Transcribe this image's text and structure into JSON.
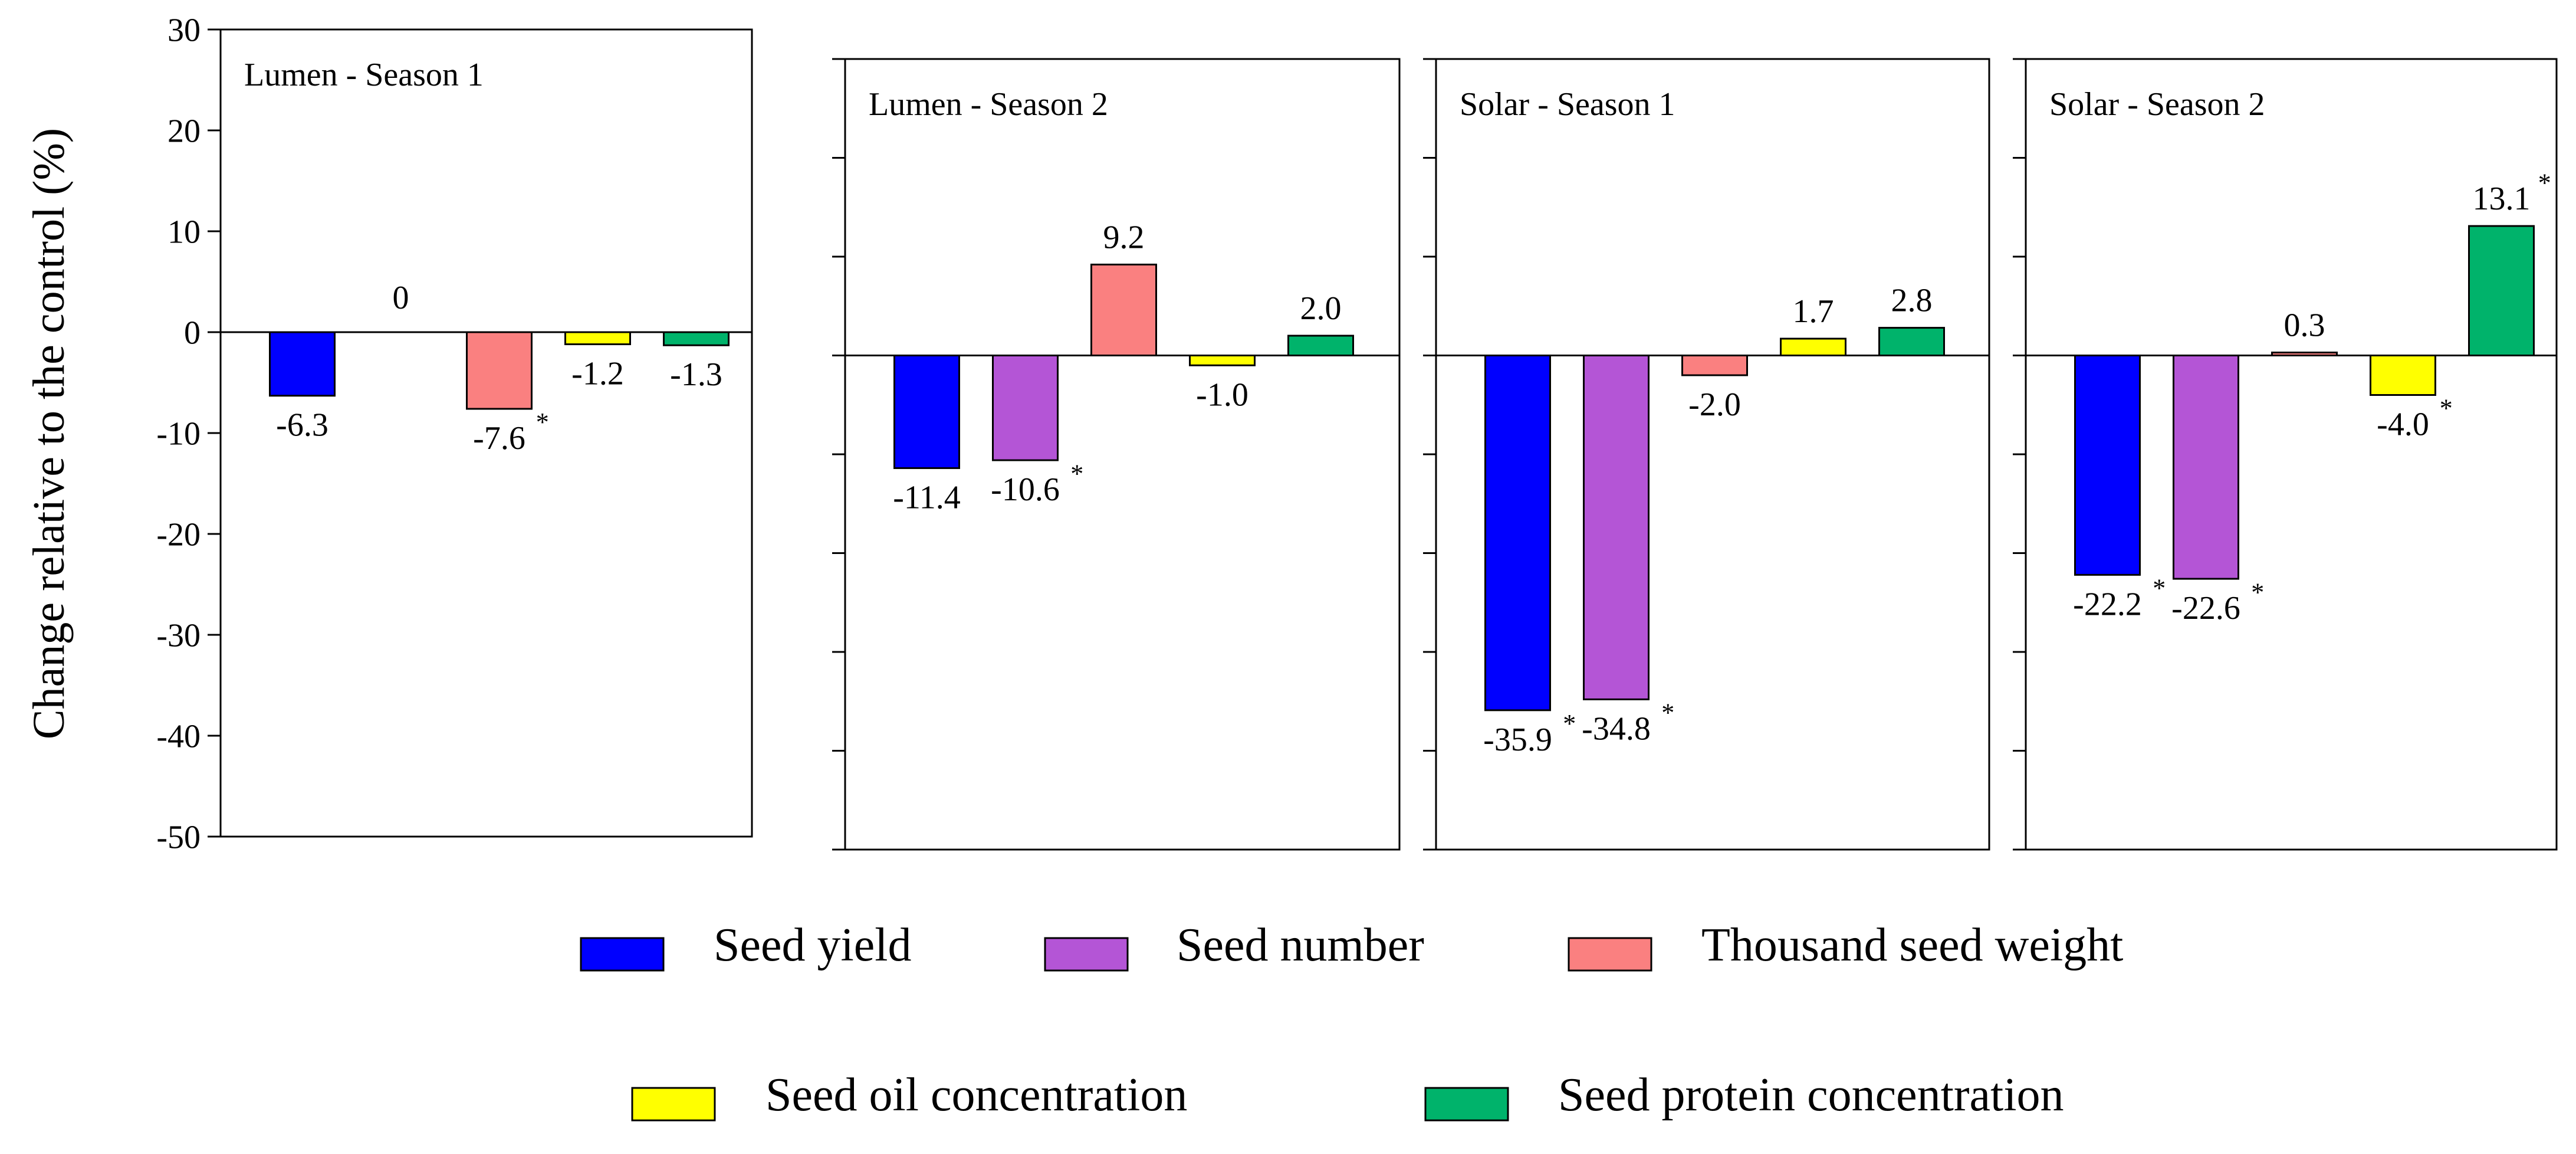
{
  "chart_data": {
    "type": "bar",
    "ylabel": "Change relative to the control (%)",
    "ylim": [
      -50,
      30
    ],
    "yticks": [
      30,
      20,
      10,
      0,
      -10,
      -20,
      -30,
      -40,
      -50
    ],
    "grid": false,
    "legend_position": "bottom",
    "series": [
      {
        "name": "Seed yield",
        "color": "#0000ff"
      },
      {
        "name": "Seed number",
        "color": "#b455d6"
      },
      {
        "name": "Thousand seed weight",
        "color": "#fa8080"
      },
      {
        "name": "Seed oil concentration",
        "color": "#ffff00"
      },
      {
        "name": "Seed protein concentration",
        "color": "#00b36b"
      }
    ],
    "panels": [
      {
        "title": "Lumen - Season 1",
        "values": [
          -6.3,
          null,
          -7.6,
          -1.2,
          -1.3
        ],
        "labels": [
          "-6.3",
          "0",
          "-7.6",
          "-1.2",
          "-1.3"
        ],
        "significant": [
          false,
          false,
          true,
          false,
          false
        ]
      },
      {
        "title": "Lumen -  Season 2",
        "values": [
          -11.4,
          -10.6,
          9.2,
          -1.0,
          2.0
        ],
        "labels": [
          "-11.4",
          "-10.6",
          "9.2",
          "-1.0",
          "2.0"
        ],
        "significant": [
          false,
          true,
          false,
          false,
          false
        ]
      },
      {
        "title": "Solar -  Season 1",
        "values": [
          -35.9,
          -34.8,
          -2.0,
          1.7,
          2.8
        ],
        "labels": [
          "-35.9",
          "-34.8",
          "-2.0",
          "1.7",
          "2.8"
        ],
        "significant": [
          true,
          true,
          false,
          false,
          false
        ]
      },
      {
        "title": "Solar -  Season 2",
        "values": [
          -22.2,
          -22.6,
          0.3,
          -4.0,
          13.1
        ],
        "labels": [
          "-22.2",
          "-22.6",
          "0.3",
          "-4.0",
          "13.1"
        ],
        "significant": [
          true,
          true,
          false,
          true,
          true
        ]
      }
    ],
    "significance_marker": "*"
  }
}
